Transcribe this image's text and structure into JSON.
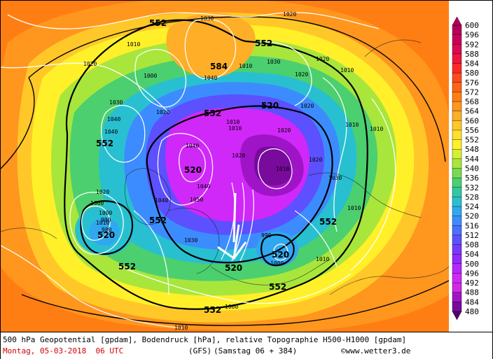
{
  "legend": {
    "values": [
      "600",
      "596",
      "592",
      "588",
      "584",
      "580",
      "576",
      "572",
      "568",
      "564",
      "560",
      "556",
      "552",
      "548",
      "544",
      "540",
      "536",
      "532",
      "528",
      "524",
      "520",
      "516",
      "512",
      "508",
      "504",
      "500",
      "496",
      "492",
      "488",
      "484",
      "480"
    ],
    "colors": [
      "#b4005a",
      "#c8005a",
      "#dc0a50",
      "#f0143c",
      "#ff2828",
      "#ff4a1e",
      "#ff6414",
      "#ff7e14",
      "#ff961e",
      "#ffae28",
      "#ffc828",
      "#ffe02a",
      "#fff02a",
      "#d8ef2e",
      "#a8e63c",
      "#78da50",
      "#4ccf6e",
      "#30c8a0",
      "#28c0d0",
      "#30a8f0",
      "#3c8cff",
      "#4c70ff",
      "#5c50ff",
      "#7838ff",
      "#9428ff",
      "#b428ff",
      "#d028f8",
      "#d228e6",
      "#a014c8",
      "#780a9c",
      "#50006e"
    ]
  },
  "map": {
    "contour_labels": [
      "552",
      "552",
      "552",
      "552",
      "552",
      "552",
      "552",
      "552",
      "552",
      "520",
      "520",
      "520",
      "520",
      "520",
      "584"
    ],
    "pressure_labels": [
      "1030",
      "1020",
      "1020",
      "1010",
      "1020",
      "1000",
      "1040",
      "1030",
      "1010",
      "1020",
      "1030",
      "1010",
      "1020",
      "1020",
      "1010",
      "1040",
      "1040",
      "1040",
      "1010",
      "1010",
      "1010",
      "1040",
      "1040",
      "1050",
      "1020",
      "1020",
      "1010",
      "1030",
      "990",
      "1000",
      "1010",
      "1020",
      "1000",
      "1000",
      "1010",
      "990",
      "980",
      "1020",
      "1030",
      "1010",
      "1010",
      "1000"
    ]
  },
  "footer": {
    "line1": "500 hPa Geopotential [gpdam], Bodendruck [hPa], relative Topographie H500-H1000 [gpdam]",
    "line2": "Montag, 05-03-2018  06 UTC",
    "model": "(GFS)",
    "run": "(Samstag 06 + 384)",
    "copyright": "©www.wetter3.de"
  }
}
